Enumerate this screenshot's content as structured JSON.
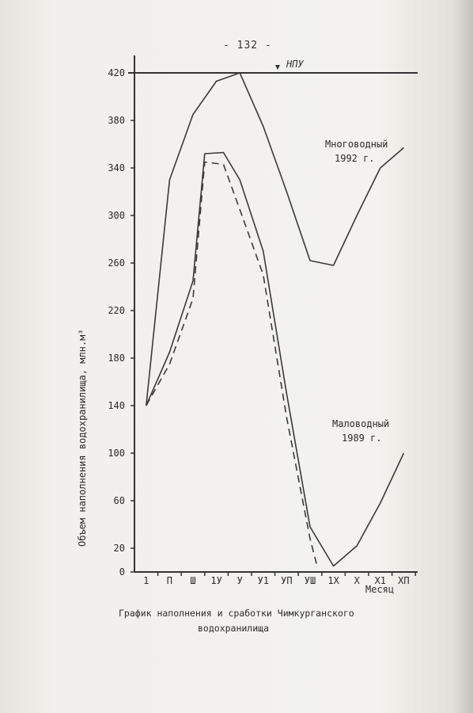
{
  "page_number": "- 132 -",
  "caption": {
    "line1": "График наполнения и сработки Чимкурганского",
    "line2": "водохранилища"
  },
  "chart_data": {
    "type": "line",
    "ylabel": "Объем наполнения водохранилища, млн.м³",
    "xlabel": "Месяц",
    "ylim": [
      0,
      420
    ],
    "yticks": [
      "0",
      "20",
      "60",
      "100",
      "140",
      "180",
      "220",
      "260",
      "300",
      "340",
      "380",
      "420"
    ],
    "categories": [
      "1",
      "П",
      "Ш",
      "1У",
      "У",
      "У1",
      "УП",
      "УШ",
      "1Х",
      "Х",
      "Х1",
      "ХП"
    ],
    "reference_line": {
      "label": "НПУ",
      "value": 420
    },
    "series": [
      {
        "name": "Многоводный 1992 г.",
        "label_line1": "Многоводный",
        "label_line2": "1992 г.",
        "style": "solid",
        "points": [
          [
            0.5,
            140
          ],
          [
            1.5,
            330
          ],
          [
            2.5,
            385
          ],
          [
            3.5,
            413
          ],
          [
            4.5,
            420
          ],
          [
            5.5,
            375
          ],
          [
            6.5,
            320
          ],
          [
            7.5,
            262
          ],
          [
            8.5,
            258
          ],
          [
            9.5,
            300
          ],
          [
            10.5,
            340
          ],
          [
            11.5,
            357
          ]
        ]
      },
      {
        "name": "Маловодный 1989 г.",
        "label_line1": "Маловодный",
        "label_line2": "1989 г.",
        "style": "solid",
        "points": [
          [
            0.5,
            140
          ],
          [
            1.5,
            185
          ],
          [
            2.5,
            245
          ],
          [
            3.0,
            352
          ],
          [
            3.8,
            353
          ],
          [
            4.5,
            330
          ],
          [
            5.5,
            270
          ],
          [
            6.5,
            150
          ],
          [
            7.5,
            38
          ],
          [
            8.5,
            5
          ],
          [
            9.5,
            22
          ],
          [
            10.5,
            58
          ],
          [
            11.5,
            100
          ]
        ]
      },
      {
        "name": "",
        "style": "dashed",
        "points": [
          [
            0.5,
            140
          ],
          [
            1.5,
            175
          ],
          [
            2.5,
            230
          ],
          [
            3.0,
            345
          ],
          [
            3.8,
            343
          ],
          [
            4.5,
            305
          ],
          [
            5.5,
            250
          ],
          [
            6.5,
            130
          ],
          [
            7.5,
            28
          ],
          [
            7.8,
            5
          ]
        ]
      }
    ]
  }
}
